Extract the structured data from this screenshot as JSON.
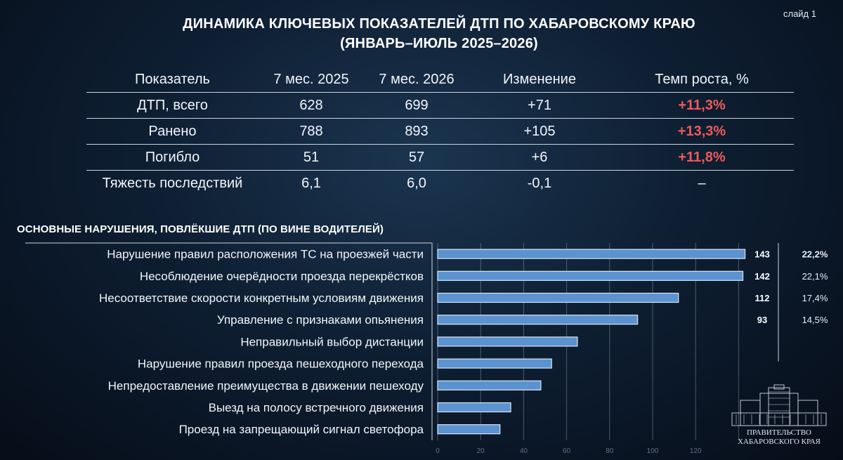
{
  "slide_label": "слайд 1",
  "title": {
    "line1": "ДИНАМИКА КЛЮЧЕВЫХ ПОКАЗАТЕЛЕЙ ДТП ПО ХАБАРОВСКОМУ КРАЮ",
    "line2": "(ЯНВАРЬ–ИЮЛЬ 2025–2026)"
  },
  "kpi_table": {
    "headers": [
      "Показатель",
      "7 мес. 2025",
      "7 мес. 2026",
      "Изменение",
      "Темп роста, %"
    ],
    "rows": [
      [
        "ДТП, всего",
        "628",
        "699",
        "+71",
        "+11,3%"
      ],
      [
        "Ранено",
        "788",
        "893",
        "+105",
        "+13,3%"
      ],
      [
        "Погибло",
        "51",
        "57",
        "+6",
        "+11,8%"
      ],
      [
        "Тяжесть последствий",
        "6,1",
        "6,0",
        "-0,1",
        "–"
      ]
    ],
    "accent_color": "#ef5a5a"
  },
  "section_title": "ОСНОВНЫЕ НАРУШЕНИЯ, ПОВЛЁКШИЕ ДТП (ПО ВИНЕ ВОДИТЕЛЕЙ)",
  "chart_data": {
    "type": "bar",
    "orientation": "horizontal",
    "categories": [
      "Нарушение правил расположения ТС на проезжей части",
      "Несоблюдение очерёдности проезда перекрёстков",
      "Несоответствие скорости конкретным условиям движения",
      "Управление с признаками опьянения",
      "Неправильный выбор дистанции",
      "Нарушение правил проезда пешеходного перехода",
      "Непредоставление преимущества в движении пешеходу",
      "Выезд на полосу встречного движения",
      "Проезд на запрещающий сигнал светофора"
    ],
    "values": [
      143,
      142,
      112,
      93,
      65,
      53,
      48,
      34,
      29
    ],
    "value_labels": [
      "143",
      "142",
      "112",
      "93",
      null,
      null,
      null,
      null,
      null
    ],
    "share_labels": [
      "22,2%",
      "22,1%",
      "17,4%",
      "14,5%",
      null,
      null,
      null,
      null,
      null
    ],
    "xlim": [
      0,
      140
    ],
    "xticks": [
      "0",
      "20",
      "40",
      "60",
      "80",
      "100",
      "120"
    ],
    "grid": true,
    "bar_color": "#5b92d0"
  },
  "logo": {
    "line1": "ПРАВИТЕЛЬСТВО",
    "line2": "ХАБАРОВСКОГО КРАЯ",
    "icon": "government-building-icon"
  }
}
